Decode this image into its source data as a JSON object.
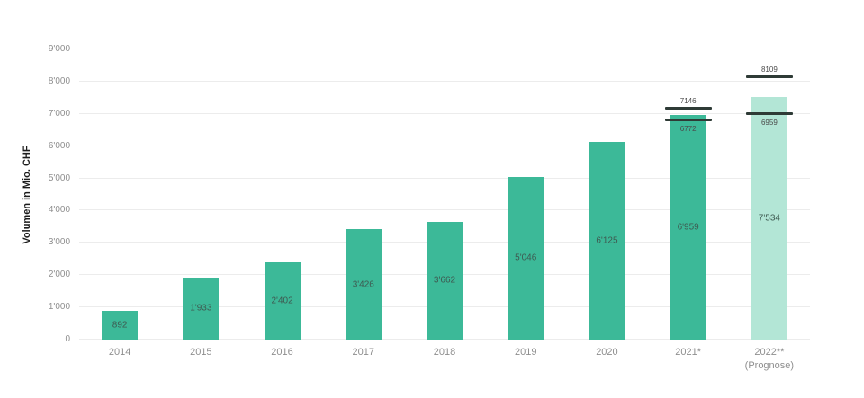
{
  "chart_data": {
    "type": "bar",
    "title": "",
    "xlabel": "",
    "ylabel": "Volumen in Mio. CHF",
    "ylim": [
      0,
      9000
    ],
    "grid": true,
    "legend": "none",
    "yticks": [
      {
        "value": 9000,
        "label": "9'000"
      },
      {
        "value": 8000,
        "label": "8'000"
      },
      {
        "value": 7000,
        "label": "7'000"
      },
      {
        "value": 6000,
        "label": "6'000"
      },
      {
        "value": 5000,
        "label": "5'000"
      },
      {
        "value": 4000,
        "label": "4'000"
      },
      {
        "value": 3000,
        "label": "3'000"
      },
      {
        "value": 2000,
        "label": "2'000"
      },
      {
        "value": 1000,
        "label": "1'000"
      },
      {
        "value": 0,
        "label": "0"
      }
    ],
    "categories": [
      "2014",
      "2015",
      "2016",
      "2017",
      "2018",
      "2019",
      "2020",
      "2021*",
      "2022**"
    ],
    "category_sublabels": [
      "",
      "",
      "",
      "",
      "",
      "",
      "",
      "",
      "(Prognose)"
    ],
    "values": [
      892,
      1933,
      2402,
      3426,
      3662,
      5046,
      6125,
      6959,
      7534
    ],
    "value_labels": [
      "892",
      "1'933",
      "2'402",
      "3'426",
      "3'662",
      "5'046",
      "6'125",
      "6'959",
      "7'534"
    ],
    "forecast_indices": [
      8
    ],
    "error_bars": [
      {
        "index": 7,
        "high": 7146,
        "high_label": "7146",
        "low": 6772,
        "low_label": "6772"
      },
      {
        "index": 8,
        "high": 8109,
        "high_label": "8109",
        "low": 6959,
        "low_label": "6959"
      }
    ],
    "colors": {
      "bar": "#3cb998",
      "bar_forecast": "#b3e6d6",
      "error_line": "#2e3b36",
      "grid": "#ececec",
      "tick_text": "#8f8f8f",
      "bar_label_text": "#3e5a51",
      "error_label_text": "#4a4a4a",
      "background": "#ffffff"
    }
  }
}
